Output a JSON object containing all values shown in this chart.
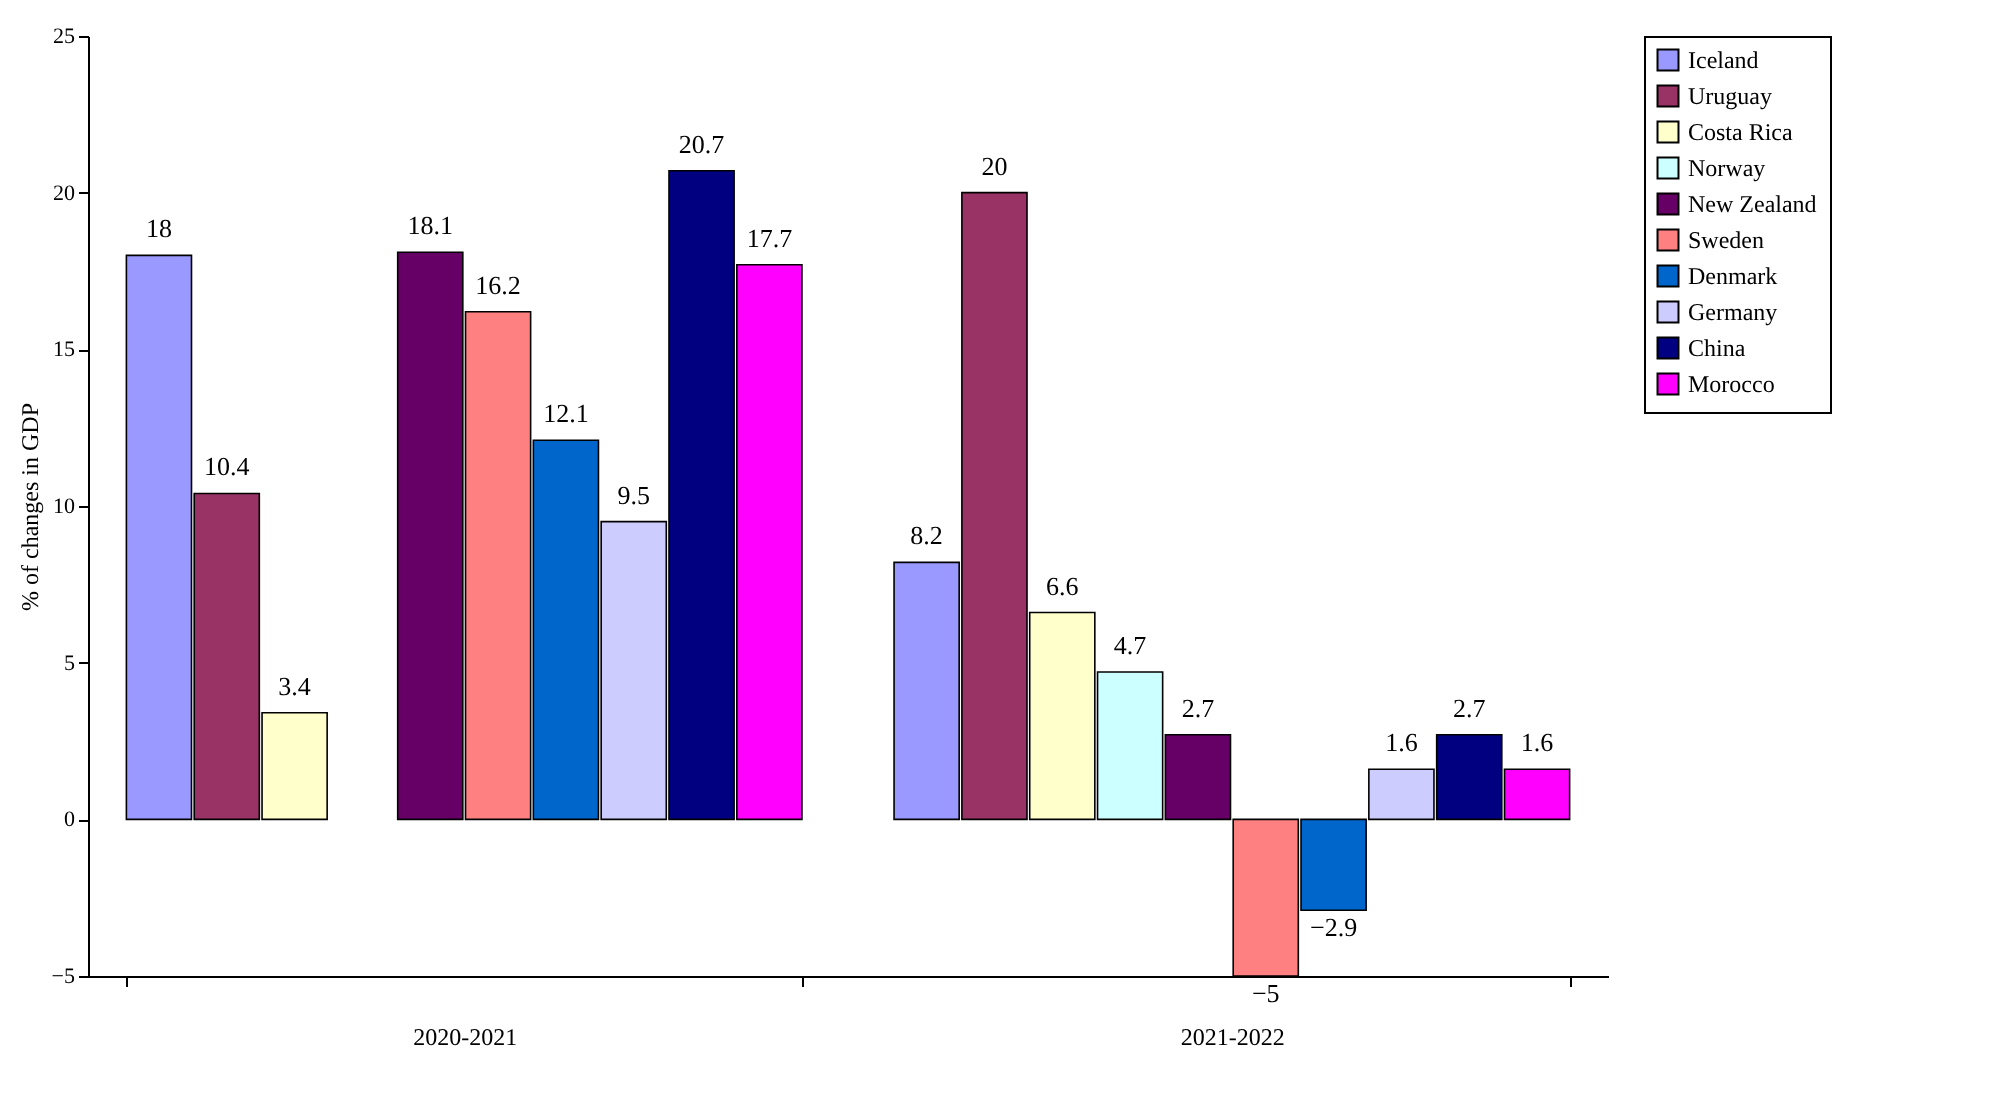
{
  "chart_data": {
    "type": "bar",
    "ylabel": "% of changes in GDP",
    "categories": [
      "2020-2021",
      "2021-2022"
    ],
    "series": [
      {
        "name": "Iceland",
        "color": "#9999ff",
        "values": [
          18,
          8.2
        ]
      },
      {
        "name": "Uruguay",
        "color": "#993366",
        "values": [
          10.4,
          20
        ]
      },
      {
        "name": "Costa Rica",
        "color": "#ffffcc",
        "values": [
          3.4,
          6.6
        ]
      },
      {
        "name": "Norway",
        "color": "#ccffff",
        "values": [
          null,
          4.7
        ]
      },
      {
        "name": "New Zealand",
        "color": "#660066",
        "values": [
          18.1,
          2.7
        ]
      },
      {
        "name": "Sweden",
        "color": "#ff8080",
        "values": [
          16.2,
          -5
        ]
      },
      {
        "name": "Denmark",
        "color": "#0066cc",
        "values": [
          12.1,
          -2.9
        ]
      },
      {
        "name": "Germany",
        "color": "#ccccff",
        "values": [
          9.5,
          1.6
        ]
      },
      {
        "name": "China",
        "color": "#000080",
        "values": [
          20.7,
          2.7
        ]
      },
      {
        "name": "Morocco",
        "color": "#ff00ff",
        "values": [
          17.7,
          1.6
        ]
      }
    ],
    "ylim": [
      -5,
      25
    ],
    "yticks": [
      -5,
      0,
      5,
      10,
      15,
      20,
      25
    ],
    "grid": false,
    "legend": "right",
    "data_labels": true
  }
}
